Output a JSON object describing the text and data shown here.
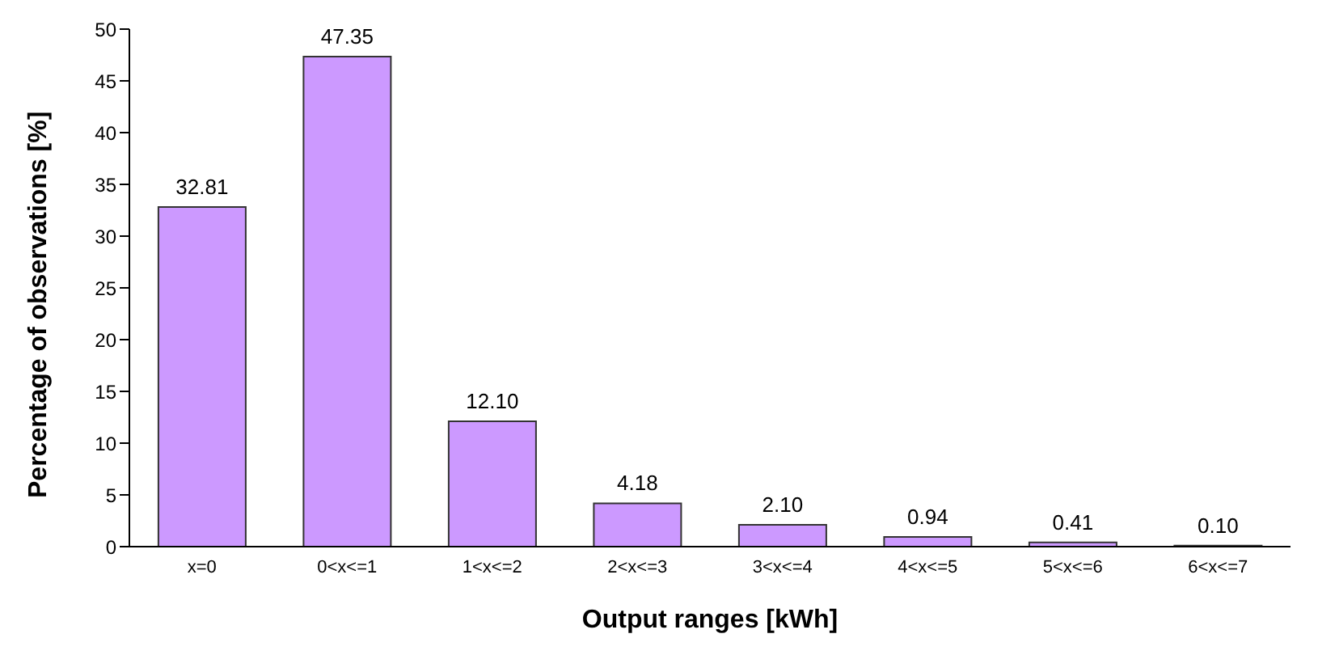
{
  "chart_data": {
    "type": "bar",
    "xlabel": "Output ranges [kWh]",
    "ylabel": "Percentage of observations [%]",
    "categories": [
      "x=0",
      "0<x<=1",
      "1<x<=2",
      "2<x<=3",
      "3<x<=4",
      "4<x<=5",
      "5<x<=6",
      "6<x<=7"
    ],
    "values": [
      32.81,
      47.35,
      12.1,
      4.18,
      2.1,
      0.94,
      0.41,
      0.1
    ],
    "value_labels": [
      "32.81",
      "47.35",
      "12.10",
      "4.18",
      "2.10",
      "0.94",
      "0.41",
      "0.10"
    ],
    "color": "#cc99ff",
    "ylim": [
      0,
      50
    ],
    "yticks": [
      0,
      5,
      10,
      15,
      20,
      25,
      30,
      35,
      40,
      45,
      50
    ],
    "grid": false
  }
}
